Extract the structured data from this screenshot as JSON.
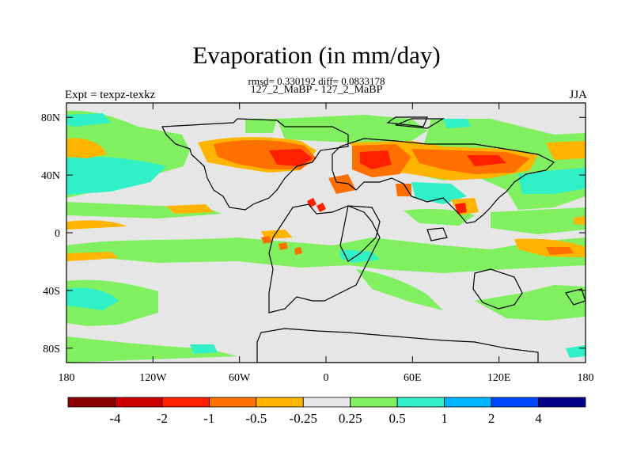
{
  "title": "Evaporation (in mm/day)",
  "subtitle_stats": "rmsd= 0.330192 diff= 0.0833178",
  "subtitle_cases": "127_2_MaBP - 127_2_MaBP",
  "left_label": "Expt = texpz-texkz",
  "right_label": "JJA",
  "axes": {
    "x_ticks": [
      "180",
      "120W",
      "60W",
      "0",
      "60E",
      "120E",
      "180"
    ],
    "y_ticks": [
      "80N",
      "40N",
      "0",
      "40S",
      "80S"
    ]
  },
  "colorbar": {
    "labels": [
      "-4",
      "-2",
      "-1",
      "-0.5",
      "-0.25",
      "0.25",
      "0.5",
      "1",
      "2",
      "4"
    ],
    "colors": [
      "#8b0000",
      "#cc0000",
      "#ff2000",
      "#ff7000",
      "#ffb400",
      "#e6e6e6",
      "#80f060",
      "#30f0c8",
      "#00b4ff",
      "#0046ff",
      "#00008b"
    ]
  },
  "map_colors": {
    "land_outline": "#000000",
    "background": "#e6e6e6"
  }
}
